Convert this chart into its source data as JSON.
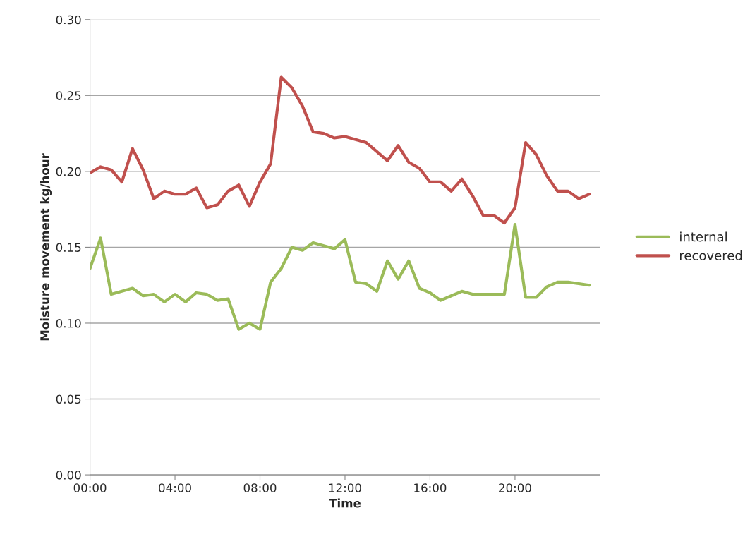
{
  "chart_data": {
    "type": "line",
    "xlabel": "Time",
    "ylabel": "Moisture movement kg/hour",
    "x": [
      0,
      0.5,
      1,
      1.5,
      2,
      2.5,
      3,
      3.5,
      4,
      4.5,
      5,
      5.5,
      6,
      6.5,
      7,
      7.5,
      8,
      8.5,
      9,
      9.5,
      10,
      10.5,
      11,
      11.5,
      12,
      12.5,
      13,
      13.5,
      14,
      14.5,
      15,
      15.5,
      16,
      16.5,
      17,
      17.5,
      18,
      18.5,
      19,
      19.5,
      20,
      20.5,
      21,
      21.5,
      22,
      22.5,
      23,
      23.5
    ],
    "series": [
      {
        "name": "internal",
        "color": "#9bbb59",
        "values": [
          0.136,
          0.156,
          0.119,
          0.121,
          0.123,
          0.118,
          0.119,
          0.114,
          0.119,
          0.114,
          0.12,
          0.119,
          0.115,
          0.116,
          0.096,
          0.1,
          0.096,
          0.127,
          0.136,
          0.15,
          0.148,
          0.153,
          0.151,
          0.149,
          0.155,
          0.127,
          0.126,
          0.121,
          0.141,
          0.129,
          0.141,
          0.123,
          0.12,
          0.115,
          0.118,
          0.121,
          0.119,
          0.119,
          0.119,
          0.119,
          0.165,
          0.117,
          0.117,
          0.124,
          0.127,
          0.127,
          0.126,
          0.125
        ]
      },
      {
        "name": "recovered",
        "color": "#c0504d",
        "values": [
          0.199,
          0.203,
          0.201,
          0.193,
          0.215,
          0.201,
          0.182,
          0.187,
          0.185,
          0.185,
          0.189,
          0.176,
          0.178,
          0.187,
          0.191,
          0.177,
          0.193,
          0.205,
          0.262,
          0.255,
          0.243,
          0.226,
          0.225,
          0.222,
          0.223,
          0.221,
          0.219,
          0.213,
          0.207,
          0.217,
          0.206,
          0.202,
          0.193,
          0.193,
          0.187,
          0.195,
          0.184,
          0.171,
          0.171,
          0.166,
          0.176,
          0.219,
          0.211,
          0.197,
          0.187,
          0.187,
          0.182,
          0.185
        ]
      }
    ],
    "xlim": [
      0,
      24
    ],
    "xticks": [
      {
        "value": 0,
        "label": "00:00"
      },
      {
        "value": 4,
        "label": "04:00"
      },
      {
        "value": 8,
        "label": "08:00"
      },
      {
        "value": 12,
        "label": "12:00"
      },
      {
        "value": 16,
        "label": "16:00"
      },
      {
        "value": 20,
        "label": "20:00"
      }
    ],
    "ylim": [
      0,
      0.3
    ],
    "yticks": [
      {
        "value": 0,
        "label": "0.00"
      },
      {
        "value": 0.05,
        "label": "0.05"
      },
      {
        "value": 0.1,
        "label": "0.10"
      },
      {
        "value": 0.15,
        "label": "0.15"
      },
      {
        "value": 0.2,
        "label": "0.20"
      },
      {
        "value": 0.25,
        "label": "0.25"
      },
      {
        "value": 0.3,
        "label": "0.30"
      }
    ],
    "grid": "y",
    "legend": "right",
    "marker": "none",
    "line_style": "solid"
  }
}
